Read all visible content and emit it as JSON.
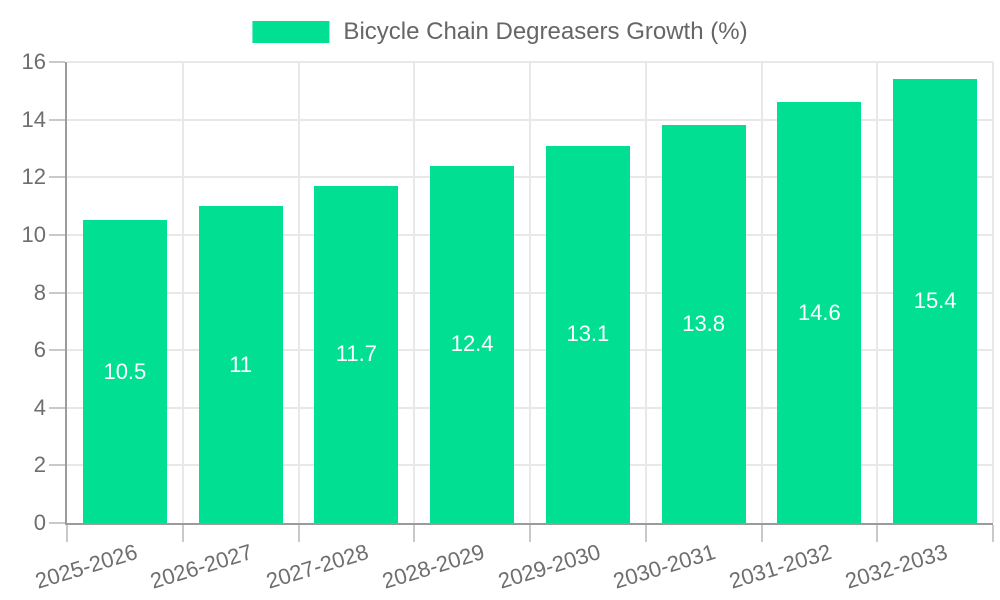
{
  "chart_data": {
    "type": "bar",
    "title": "Bicycle Chain Degreasers Growth (%)",
    "categories": [
      "2025-2026",
      "2026-2027",
      "2027-2028",
      "2028-2029",
      "2029-2030",
      "2030-2031",
      "2031-2032",
      "2032-2033"
    ],
    "series": [
      {
        "name": "Bicycle Chain Degreasers Growth (%)",
        "values": [
          10.5,
          11,
          11.7,
          12.4,
          13.1,
          13.8,
          14.6,
          15.4
        ]
      }
    ],
    "value_labels": [
      "10.5",
      "11",
      "11.7",
      "12.4",
      "13.1",
      "13.8",
      "14.6",
      "15.4"
    ],
    "xlabel": "",
    "ylabel": "",
    "ylim": [
      0,
      16
    ],
    "yticks": [
      0,
      2,
      4,
      6,
      8,
      10,
      12,
      14,
      16
    ],
    "grid": true,
    "legend_position": "top-center",
    "x_tick_rotation_deg": -17
  },
  "colors": {
    "bar": "#00DF92",
    "grid_line": "#e8e8e8",
    "axis_line": "#9b9b9b",
    "tick_mark": "#c9c9c9",
    "tick_label": "#6e6e6e",
    "legend_text": "#666666",
    "value_label": "#ffffff",
    "background": "#ffffff"
  }
}
